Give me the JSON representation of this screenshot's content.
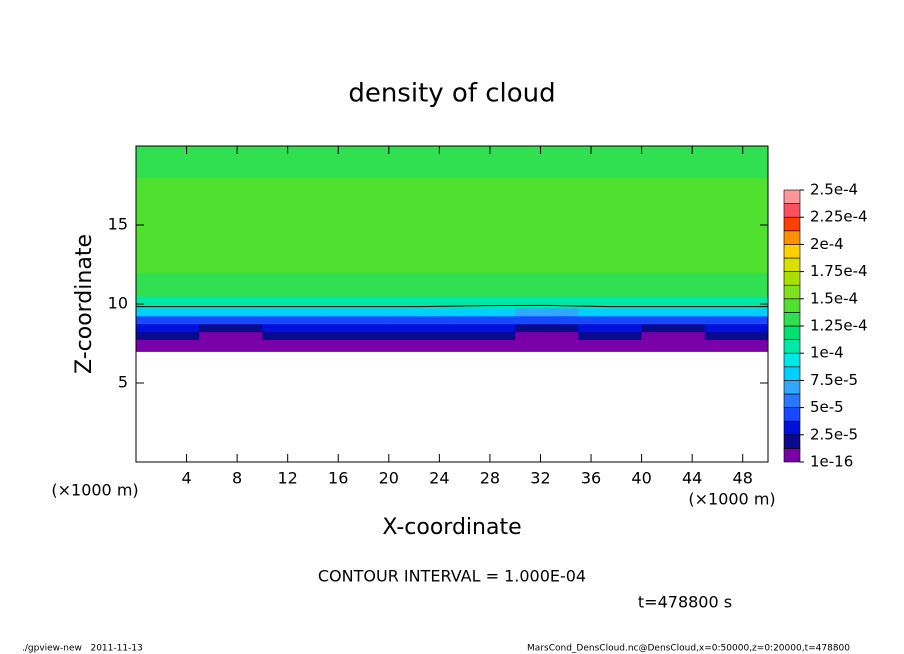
{
  "chart_data": {
    "type": "contour",
    "title": "density of cloud",
    "x_label": "X-coordinate",
    "y_label": "Z-coordinate",
    "x_unit": "(×1000 m)",
    "y_unit": "(×1000 m)",
    "xlim": [
      0,
      50
    ],
    "ylim": [
      0,
      20
    ],
    "xticks": [
      4,
      8,
      12,
      16,
      20,
      24,
      28,
      32,
      36,
      40,
      44,
      48
    ],
    "yticks": [
      5,
      10,
      15
    ],
    "field": {
      "x": [
        2.5,
        7.5,
        12.5,
        17.5,
        22.5,
        27.5,
        32.5,
        37.5,
        42.5,
        47.5
      ],
      "y": [
        6.5,
        7.5,
        8,
        8.5,
        9,
        9.5,
        10,
        11,
        13,
        15,
        17,
        19
      ],
      "values": [
        [
          null,
          null,
          null,
          null,
          null,
          null,
          null,
          null,
          null,
          null
        ],
        [
          5e-06,
          5e-06,
          5e-06,
          5e-06,
          5e-06,
          5e-06,
          5e-06,
          5e-06,
          5e-06,
          5e-06
        ],
        [
          1.5e-05,
          1e-05,
          1.5e-05,
          1.5e-05,
          1.5e-05,
          1.5e-05,
          1e-05,
          1.5e-05,
          1e-05,
          1.5e-05
        ],
        [
          3e-05,
          2.5e-05,
          3e-05,
          3e-05,
          3e-05,
          3e-05,
          2.5e-05,
          3e-05,
          2.5e-05,
          3e-05
        ],
        [
          5e-05,
          5e-05,
          5e-05,
          5e-05,
          5e-05,
          5e-05,
          4.5e-05,
          5e-05,
          5e-05,
          5e-05
        ],
        [
          8e-05,
          8e-05,
          8e-05,
          8e-05,
          8e-05,
          8e-05,
          7.5e-05,
          8e-05,
          8e-05,
          8e-05
        ],
        [
          0.00011,
          0.00011,
          0.00011,
          0.00011,
          0.00011,
          0.000105,
          0.000105,
          0.00011,
          0.00011,
          0.00011
        ],
        [
          0.000135,
          0.000135,
          0.000135,
          0.000135,
          0.000135,
          0.000135,
          0.000135,
          0.000135,
          0.000135,
          0.000135
        ],
        [
          0.00014,
          0.00014,
          0.00014,
          0.00014,
          0.000145,
          0.00014,
          0.00014,
          0.00014,
          0.00014,
          0.00014
        ],
        [
          0.000145,
          0.000145,
          0.000145,
          0.000145,
          0.000145,
          0.000145,
          0.000145,
          0.000145,
          0.000145,
          0.000145
        ],
        [
          0.00014,
          0.00014,
          0.00014,
          0.00014,
          0.00014,
          0.00014,
          0.00014,
          0.00014,
          0.00014,
          0.00014
        ],
        [
          0.000135,
          0.000135,
          0.000135,
          0.000135,
          0.000135,
          0.000135,
          0.000135,
          0.000135,
          0.000135,
          0.000135
        ]
      ]
    },
    "contour_level": 0.0001,
    "colorbar": {
      "ticks": [
        {
          "value": 1e-16,
          "label": "1e-16"
        },
        {
          "value": 2.5e-05,
          "label": "2.5e-5"
        },
        {
          "value": 5e-05,
          "label": "5e-5"
        },
        {
          "value": 7.5e-05,
          "label": "7.5e-5"
        },
        {
          "value": 0.0001,
          "label": "1e-4"
        },
        {
          "value": 0.000125,
          "label": "1.25e-4"
        },
        {
          "value": 0.00015,
          "label": "1.5e-4"
        },
        {
          "value": 0.000175,
          "label": "1.75e-4"
        },
        {
          "value": 0.0002,
          "label": "2e-4"
        },
        {
          "value": 0.000225,
          "label": "2.25e-4"
        },
        {
          "value": 0.00025,
          "label": "2.5e-4"
        }
      ],
      "colors": [
        "#7a00a8",
        "#0a0a8c",
        "#0010d8",
        "#1848ff",
        "#2878ff",
        "#30a8ff",
        "#00d0ff",
        "#00e8e8",
        "#00e8a8",
        "#00e070",
        "#30e050",
        "#50e030",
        "#80e020",
        "#a8e000",
        "#d8e000",
        "#ffd000",
        "#ff9000",
        "#ff4000",
        "#ff5060",
        "#ff9898"
      ]
    },
    "contour_interval": "CONTOUR INTERVAL = 1.000E-04",
    "time_label": "t=478800 s",
    "footer_left": "./gpview-new   2011-11-13",
    "footer_right": "MarsCond_DensCloud.nc@DensCloud,x=0:50000,z=0:20000,t=478800"
  }
}
